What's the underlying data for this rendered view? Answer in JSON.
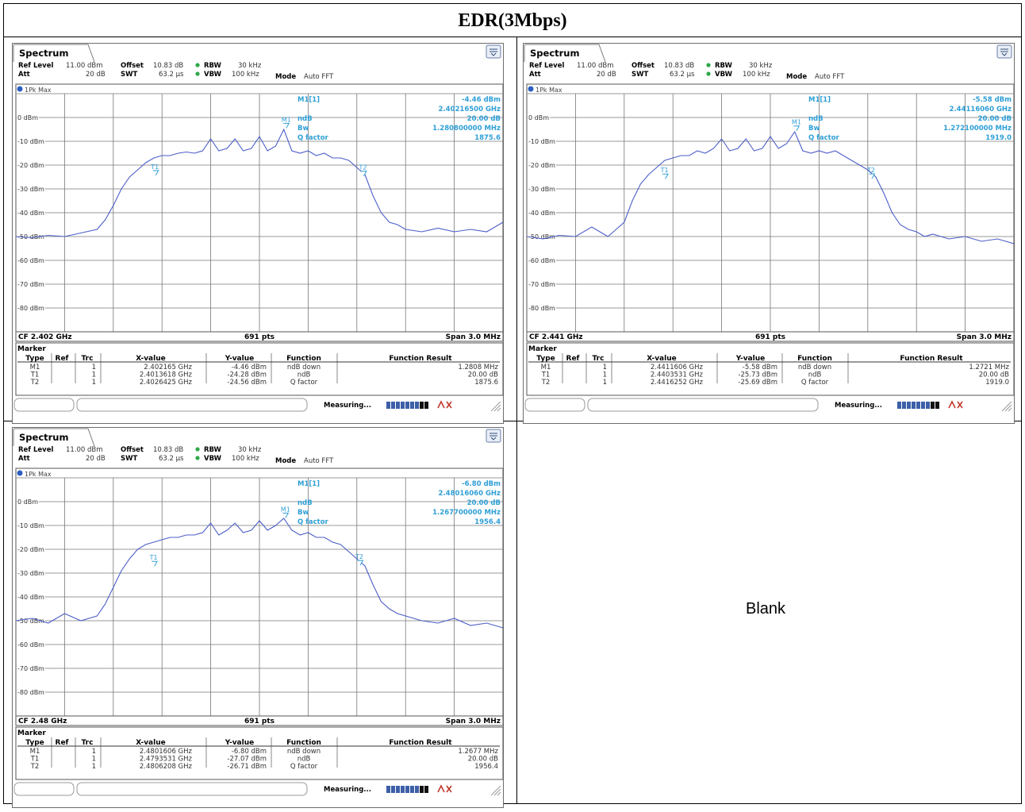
{
  "title": "EDR(3Mbps)",
  "blank_label": "Blank",
  "colors": {
    "trace": "#4c5ec8",
    "marker_text": "#2f9fd6",
    "grid": "#9a9a9a"
  },
  "chart_data": [
    {
      "type": "line",
      "tab": "Spectrum",
      "settings": {
        "ref_level_label": "Ref Level",
        "ref_level": "11.00 dBm",
        "offset_label": "Offset",
        "offset": "10.83 dB",
        "rbw_label": "RBW",
        "rbw": "30 kHz",
        "att_label": "Att",
        "att": "20 dB",
        "swt_label": "SWT",
        "swt": "63.2 µs",
        "vbw_label": "VBW",
        "vbw": "100 kHz",
        "mode_label": "Mode",
        "mode": "Auto FFT"
      },
      "trace_label": "1Pk Max",
      "ylim": [
        -90,
        10
      ],
      "yticks": [
        "0 dBm",
        "-10 dBm",
        "-20 dBm",
        "-30 dBm",
        "-40 dBm",
        "-50 dBm",
        "-60 dBm",
        "-70 dBm",
        "-80 dBm"
      ],
      "ytick_values": [
        0,
        -10,
        -20,
        -30,
        -40,
        -50,
        -60,
        -70,
        -80
      ],
      "xlim_mhz": [
        -1.5,
        1.5
      ],
      "cf": "CF 2.402 GHz",
      "pts": "691 pts",
      "span": "Span 3.0 MHz",
      "marker_box": {
        "m1": "M1[1]",
        "m1_level": "-4.46 dBm",
        "m1_freq": "2.40216500 GHz",
        "ndb_label": "ndB",
        "ndb": "20.00 dB",
        "bw_label": "Bw",
        "bw": "1.280800000 MHz",
        "q_label": "Q factor",
        "q": "1875.6"
      },
      "markers": [
        {
          "name": "M1",
          "x": 0.165,
          "y": -4.46
        },
        {
          "name": "T1",
          "x": -0.639,
          "y": -24.28
        },
        {
          "name": "T2",
          "x": 0.6425,
          "y": -24.56
        }
      ],
      "series": [
        {
          "x": [
            -1.5,
            -1.4,
            -1.3,
            -1.2,
            -1.1,
            -1.0,
            -0.95,
            -0.9,
            -0.85,
            -0.8,
            -0.75,
            -0.7,
            -0.65,
            -0.6,
            -0.55,
            -0.5,
            -0.45,
            -0.4,
            -0.35,
            -0.3,
            -0.25,
            -0.2,
            -0.15,
            -0.1,
            -0.05,
            0.0,
            0.05,
            0.1,
            0.15,
            0.2,
            0.25,
            0.3,
            0.35,
            0.4,
            0.45,
            0.5,
            0.55,
            0.6,
            0.65,
            0.7,
            0.75,
            0.8,
            0.85,
            0.9,
            0.95,
            1.0,
            1.1,
            1.2,
            1.3,
            1.4,
            1.5
          ],
          "y": [
            -50,
            -50.5,
            -49.5,
            -50,
            -48.5,
            -47,
            -43,
            -37,
            -30,
            -25,
            -22,
            -19,
            -17,
            -16,
            -16,
            -15,
            -14.5,
            -15,
            -14,
            -9,
            -14,
            -13,
            -9,
            -14,
            -13,
            -8,
            -14,
            -12,
            -5,
            -14,
            -15,
            -14,
            -16,
            -15,
            -17,
            -17,
            -18,
            -21,
            -24,
            -33,
            -40,
            -44,
            -45,
            -47,
            -47.5,
            -48,
            -46.5,
            -48,
            -47,
            -48,
            -44
          ]
        }
      ],
      "marker_table": {
        "label": "Marker",
        "headers": [
          "Type",
          "Ref",
          "Trc",
          "X-value",
          "Y-value",
          "Function",
          "Function Result"
        ],
        "rows": [
          [
            "M1",
            "",
            "1",
            "2.402165 GHz",
            "-4.46 dBm",
            "ndB down",
            "1.2808 MHz"
          ],
          [
            "T1",
            "",
            "1",
            "2.4013618 GHz",
            "-24.28 dBm",
            "ndB",
            "20.00 dB"
          ],
          [
            "T2",
            "",
            "1",
            "2.4026425 GHz",
            "-24.56 dBm",
            "Q factor",
            "1875.6"
          ]
        ]
      },
      "status": "Measuring..."
    },
    {
      "type": "line",
      "tab": "Spectrum",
      "settings": {
        "ref_level_label": "Ref Level",
        "ref_level": "11.00 dBm",
        "offset_label": "Offset",
        "offset": "10.83 dB",
        "rbw_label": "RBW",
        "rbw": "30 kHz",
        "att_label": "Att",
        "att": "20 dB",
        "swt_label": "SWT",
        "swt": "63.2 µs",
        "vbw_label": "VBW",
        "vbw": "100 kHz",
        "mode_label": "Mode",
        "mode": "Auto FFT"
      },
      "trace_label": "1Pk Max",
      "ylim": [
        -90,
        10
      ],
      "yticks": [
        "0 dBm",
        "-10 dBm",
        "-20 dBm",
        "-30 dBm",
        "-40 dBm",
        "-50 dBm",
        "-60 dBm",
        "-70 dBm",
        "-80 dBm"
      ],
      "ytick_values": [
        0,
        -10,
        -20,
        -30,
        -40,
        -50,
        -60,
        -70,
        -80
      ],
      "xlim_mhz": [
        -1.5,
        1.5
      ],
      "cf": "CF 2.441 GHz",
      "pts": "691 pts",
      "span": "Span 3.0 MHz",
      "marker_box": {
        "m1": "M1[1]",
        "m1_level": "-5.58 dBm",
        "m1_freq": "2.44116060 GHz",
        "ndb_label": "ndB",
        "ndb": "20.00 dB",
        "bw_label": "Bw",
        "bw": "1.272100000 MHz",
        "q_label": "Q factor",
        "q": "1919.0"
      },
      "markers": [
        {
          "name": "M1",
          "x": 0.1606,
          "y": -5.58
        },
        {
          "name": "T1",
          "x": -0.6469,
          "y": -25.73
        },
        {
          "name": "T2",
          "x": 0.6252,
          "y": -25.69
        }
      ],
      "series": [
        {
          "x": [
            -1.5,
            -1.4,
            -1.3,
            -1.2,
            -1.1,
            -1.0,
            -0.95,
            -0.9,
            -0.85,
            -0.8,
            -0.75,
            -0.7,
            -0.65,
            -0.6,
            -0.55,
            -0.5,
            -0.45,
            -0.4,
            -0.35,
            -0.3,
            -0.25,
            -0.2,
            -0.15,
            -0.1,
            -0.05,
            0.0,
            0.05,
            0.1,
            0.15,
            0.2,
            0.25,
            0.3,
            0.35,
            0.4,
            0.45,
            0.5,
            0.55,
            0.6,
            0.65,
            0.7,
            0.75,
            0.8,
            0.85,
            0.9,
            0.95,
            1.0,
            1.1,
            1.2,
            1.3,
            1.4,
            1.5
          ],
          "y": [
            -50,
            -51,
            -49.5,
            -50,
            -46,
            -50,
            -47,
            -44,
            -35,
            -28,
            -24,
            -21,
            -18,
            -17,
            -16,
            -16,
            -14,
            -15,
            -13,
            -9,
            -14,
            -13,
            -9,
            -14,
            -13,
            -8,
            -13,
            -11,
            -6,
            -14,
            -15,
            -14,
            -15,
            -14,
            -16,
            -18,
            -20,
            -22,
            -25,
            -32,
            -40,
            -45,
            -47,
            -48,
            -50,
            -49,
            -51,
            -50,
            -52,
            -51,
            -53
          ]
        }
      ],
      "marker_table": {
        "label": "Marker",
        "headers": [
          "Type",
          "Ref",
          "Trc",
          "X-value",
          "Y-value",
          "Function",
          "Function Result"
        ],
        "rows": [
          [
            "M1",
            "",
            "1",
            "2.4411606 GHz",
            "-5.58 dBm",
            "ndB down",
            "1.2721 MHz"
          ],
          [
            "T1",
            "",
            "1",
            "2.4403531 GHz",
            "-25.73 dBm",
            "ndB",
            "20.00 dB"
          ],
          [
            "T2",
            "",
            "1",
            "2.4416252 GHz",
            "-25.69 dBm",
            "Q factor",
            "1919.0"
          ]
        ]
      },
      "status": "Measuring..."
    },
    {
      "type": "line",
      "tab": "Spectrum",
      "settings": {
        "ref_level_label": "Ref Level",
        "ref_level": "11.00 dBm",
        "offset_label": "Offset",
        "offset": "10.83 dB",
        "rbw_label": "RBW",
        "rbw": "30 kHz",
        "att_label": "Att",
        "att": "20 dB",
        "swt_label": "SWT",
        "swt": "63.2 µs",
        "vbw_label": "VBW",
        "vbw": "100 kHz",
        "mode_label": "Mode",
        "mode": "Auto FFT"
      },
      "trace_label": "1Pk Max",
      "ylim": [
        -90,
        10
      ],
      "yticks": [
        "0 dBm",
        "-10 dBm",
        "-20 dBm",
        "-30 dBm",
        "-40 dBm",
        "-50 dBm",
        "-60 dBm",
        "-70 dBm",
        "-80 dBm"
      ],
      "ytick_values": [
        0,
        -10,
        -20,
        -30,
        -40,
        -50,
        -60,
        -70,
        -80
      ],
      "xlim_mhz": [
        -1.5,
        1.5
      ],
      "cf": "CF 2.48 GHz",
      "pts": "691 pts",
      "span": "Span 3.0 MHz",
      "marker_box": {
        "m1": "M1[1]",
        "m1_level": "-6.80 dBm",
        "m1_freq": "2.48016060 GHz",
        "ndb_label": "ndB",
        "ndb": "20.00 dB",
        "bw_label": "Bw",
        "bw": "1.267700000 MHz",
        "q_label": "Q factor",
        "q": "1956.4"
      },
      "markers": [
        {
          "name": "M1",
          "x": 0.1606,
          "y": -6.8
        },
        {
          "name": "T1",
          "x": -0.6469,
          "y": -27.07
        },
        {
          "name": "T2",
          "x": 0.6208,
          "y": -26.71
        }
      ],
      "series": [
        {
          "x": [
            -1.5,
            -1.4,
            -1.3,
            -1.2,
            -1.1,
            -1.0,
            -0.95,
            -0.9,
            -0.85,
            -0.8,
            -0.75,
            -0.7,
            -0.65,
            -0.6,
            -0.55,
            -0.5,
            -0.45,
            -0.4,
            -0.35,
            -0.3,
            -0.25,
            -0.2,
            -0.15,
            -0.1,
            -0.05,
            0.0,
            0.05,
            0.1,
            0.15,
            0.2,
            0.25,
            0.3,
            0.35,
            0.4,
            0.45,
            0.5,
            0.55,
            0.6,
            0.65,
            0.7,
            0.75,
            0.8,
            0.85,
            0.9,
            0.95,
            1.0,
            1.1,
            1.2,
            1.3,
            1.4,
            1.5
          ],
          "y": [
            -50,
            -49,
            -51,
            -47,
            -50,
            -48,
            -43,
            -36,
            -29,
            -24,
            -20,
            -18,
            -17,
            -16,
            -15,
            -15,
            -14,
            -14,
            -13,
            -9,
            -14,
            -12,
            -9,
            -13,
            -12,
            -8,
            -12,
            -10,
            -7,
            -12,
            -14,
            -13,
            -15,
            -15,
            -17,
            -18,
            -21,
            -24,
            -27,
            -35,
            -42,
            -45,
            -47,
            -48,
            -49,
            -50,
            -51,
            -49,
            -52,
            -51,
            -53
          ]
        }
      ],
      "marker_table": {
        "label": "Marker",
        "headers": [
          "Type",
          "Ref",
          "Trc",
          "X-value",
          "Y-value",
          "Function",
          "Function Result"
        ],
        "rows": [
          [
            "M1",
            "",
            "1",
            "2.4801606 GHz",
            "-6.80 dBm",
            "ndB down",
            "1.2677 MHz"
          ],
          [
            "T1",
            "",
            "1",
            "2.4793531 GHz",
            "-27.07 dBm",
            "ndB",
            "20.00 dB"
          ],
          [
            "T2",
            "",
            "1",
            "2.4806208 GHz",
            "-26.71 dBm",
            "Q factor",
            "1956.4"
          ]
        ]
      },
      "status": "Measuring..."
    }
  ]
}
